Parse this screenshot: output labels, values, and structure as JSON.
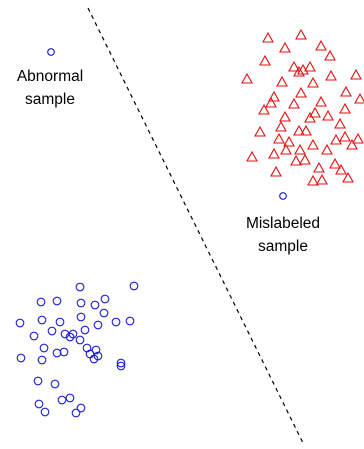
{
  "labels": {
    "abnormal": [
      "Abnormal",
      "sample"
    ],
    "mislabeled": [
      "Mislabeled",
      "sample"
    ]
  },
  "colors": {
    "circle_class": "#1f1fd6",
    "triangle_class": "#e01010",
    "divider": "#000000"
  },
  "divider": {
    "style": "dashed"
  }
}
